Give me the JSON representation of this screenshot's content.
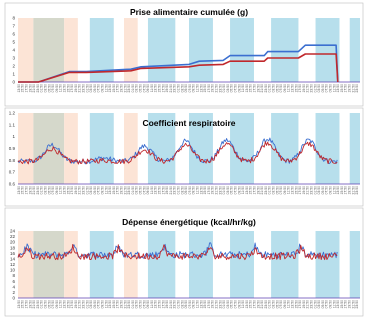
{
  "figure": {
    "band_colors": {
      "light": "#fce4d6",
      "dark": "#d5d8cb",
      "cyan": "#b7dfec"
    },
    "series_colors": {
      "blue": "#3b6fd0",
      "red": "#c0282c"
    }
  },
  "chart_data": [
    {
      "type": "line",
      "title": "Prise alimentaire cumulée (g)",
      "xlabel": "",
      "ylabel": "",
      "x": [
        "13:50",
        "15:50",
        "17:50",
        "19:50",
        "21:50",
        "23:50",
        "01:50",
        "03:50",
        "05:50",
        "07:50",
        "09:50",
        "11:50",
        "13:50",
        "15:50",
        "17:50",
        "19:50",
        "21:50",
        "23:50",
        "01:50",
        "03:50",
        "05:50",
        "07:50",
        "09:50",
        "11:50",
        "13:50",
        "15:50",
        "17:50",
        "19:50",
        "21:50",
        "23:50",
        "01:50",
        "03:50",
        "05:50",
        "07:50",
        "09:50",
        "11:50",
        "13:50",
        "15:50",
        "17:50",
        "19:50",
        "21:50",
        "23:50",
        "01:50",
        "03:50",
        "05:50",
        "07:50",
        "09:50",
        "11:50",
        "13:50",
        "15:50",
        "17:50",
        "19:50",
        "21:50",
        "23:50",
        "01:50",
        "03:50",
        "05:50",
        "07:50",
        "09:50",
        "11:50",
        "13:50",
        "15:50",
        "17:50",
        "19:50",
        "21:50",
        "23:50",
        "01:50",
        "03:50",
        "05:50",
        "07:50",
        "09:50",
        "11:50",
        "13:50",
        "15:50",
        "17:50",
        "19:50",
        "21:50",
        "23:50",
        "01:50",
        "03:50",
        "05:50",
        "07:50",
        "09:50",
        "11:50",
        "13:50",
        "15:50",
        "17:50",
        "19:50",
        "21:50",
        "23:50"
      ],
      "ylim": [
        0,
        8
      ],
      "yticks": [
        "0",
        "1",
        "2",
        "3",
        "4",
        "5",
        "6",
        "7",
        "8"
      ],
      "series": [
        {
          "color": "blue",
          "points": [
            [
              0,
              0
            ],
            [
              0.06,
              0
            ],
            [
              0.15,
              1.3
            ],
            [
              0.2,
              1.3
            ],
            [
              0.33,
              1.6
            ],
            [
              0.36,
              1.9
            ],
            [
              0.5,
              2.2
            ],
            [
              0.53,
              2.6
            ],
            [
              0.6,
              2.7
            ],
            [
              0.62,
              3.3
            ],
            [
              0.72,
              3.3
            ],
            [
              0.73,
              3.8
            ],
            [
              0.82,
              3.8
            ],
            [
              0.84,
              4.6
            ],
            [
              0.93,
              4.6
            ],
            [
              0.935,
              0
            ]
          ]
        },
        {
          "color": "red",
          "points": [
            [
              0,
              0
            ],
            [
              0.06,
              0
            ],
            [
              0.15,
              1.2
            ],
            [
              0.2,
              1.2
            ],
            [
              0.33,
              1.4
            ],
            [
              0.36,
              1.7
            ],
            [
              0.5,
              1.9
            ],
            [
              0.53,
              2.1
            ],
            [
              0.6,
              2.2
            ],
            [
              0.62,
              2.6
            ],
            [
              0.72,
              2.6
            ],
            [
              0.73,
              3.0
            ],
            [
              0.82,
              3.0
            ],
            [
              0.84,
              3.5
            ],
            [
              0.93,
              3.5
            ],
            [
              0.935,
              0
            ]
          ]
        }
      ]
    },
    {
      "type": "line",
      "title": "Coefficient respiratoire",
      "xlabel": "",
      "ylabel": "",
      "ylim": [
        0.6,
        1.2
      ],
      "yticks": [
        "0.6",
        "0.7",
        "0.8",
        "0.9",
        "1",
        "1.1",
        "1.2"
      ],
      "series": [
        {
          "color": "blue",
          "profile": "rq",
          "peaks": [
            [
              0.1,
              0.93
            ],
            [
              0.25,
              0.82
            ],
            [
              0.37,
              0.92
            ],
            [
              0.49,
              0.96
            ],
            [
              0.61,
              0.97
            ],
            [
              0.73,
              0.98
            ],
            [
              0.85,
              0.97
            ]
          ]
        },
        {
          "color": "red",
          "profile": "rq",
          "peaks": [
            [
              0.1,
              0.9
            ],
            [
              0.25,
              0.8
            ],
            [
              0.37,
              0.89
            ],
            [
              0.49,
              0.93
            ],
            [
              0.61,
              0.94
            ],
            [
              0.73,
              0.95
            ],
            [
              0.85,
              0.94
            ]
          ]
        }
      ]
    },
    {
      "type": "line",
      "title": "Dépense énergétique (kcal/hr/kg)",
      "xlabel": "",
      "ylabel": "",
      "ylim": [
        0,
        24
      ],
      "yticks": [
        "0",
        "2",
        "4",
        "6",
        "8",
        "10",
        "12",
        "14",
        "16",
        "18",
        "20",
        "22",
        "24"
      ],
      "series": [
        {
          "color": "blue",
          "profile": "ee",
          "mean": 15.5,
          "amplitude": 3.5
        },
        {
          "color": "red",
          "profile": "ee",
          "mean": 15.0,
          "amplitude": 3.3
        }
      ]
    }
  ]
}
